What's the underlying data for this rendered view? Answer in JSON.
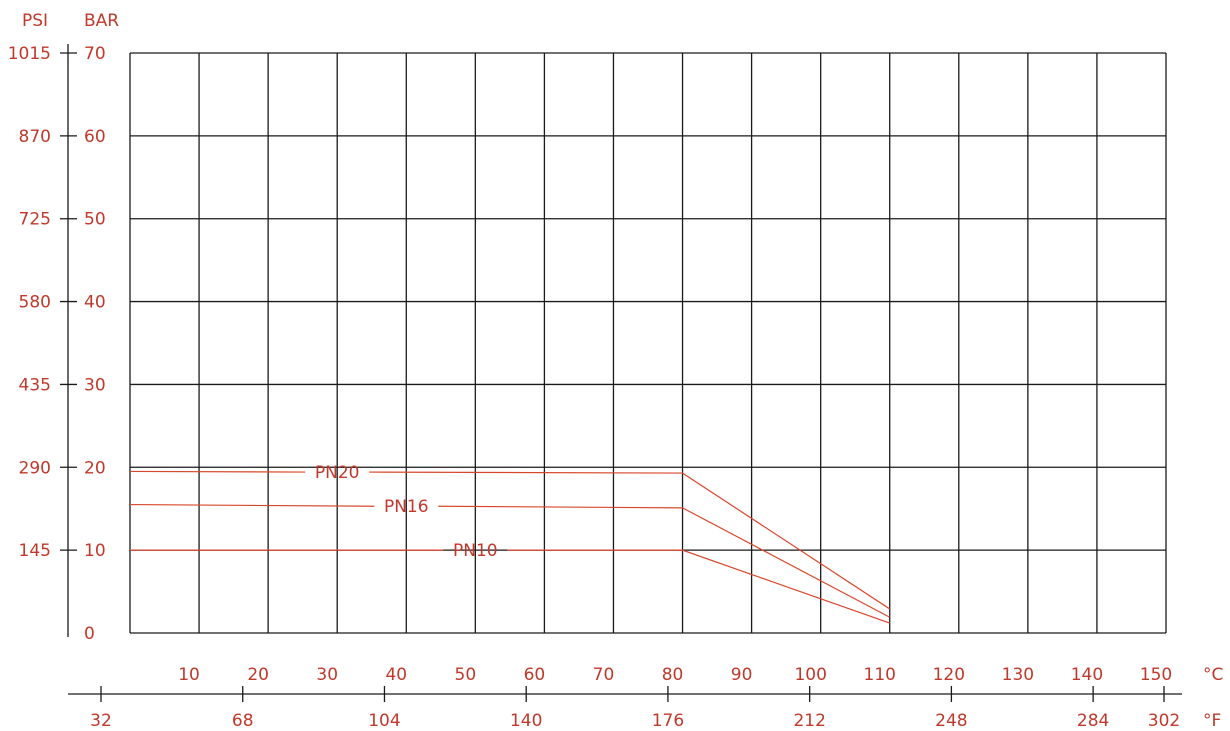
{
  "chart_data": {
    "type": "line",
    "title": "",
    "colors": {
      "text": "#c0392b",
      "series": "#d9472b",
      "grid": "#1a1a1a"
    },
    "y_axis_bar": {
      "unit": "BAR",
      "ticks": [
        "0",
        "10",
        "20",
        "30",
        "40",
        "50",
        "60",
        "70"
      ],
      "range": [
        0,
        70
      ]
    },
    "y_axis_psi": {
      "unit": "PSI",
      "ticks": [
        "145",
        "290",
        "435",
        "580",
        "725",
        "870",
        "1015"
      ],
      "values_bar": [
        10,
        20,
        30,
        40,
        50,
        60,
        70
      ]
    },
    "x_axis_c": {
      "unit": "°C",
      "ticks": [
        "10",
        "20",
        "30",
        "40",
        "50",
        "60",
        "70",
        "80",
        "90",
        "100",
        "110",
        "120",
        "130",
        "140",
        "150"
      ],
      "values": [
        10,
        20,
        30,
        40,
        50,
        60,
        70,
        80,
        90,
        100,
        110,
        120,
        130,
        140,
        150
      ]
    },
    "x_axis_f": {
      "unit": "°F",
      "ticks": [
        "32",
        "68",
        "104",
        "140",
        "176",
        "212",
        "248",
        "284",
        "302"
      ],
      "values_c": [
        0,
        20,
        40,
        60,
        80,
        100,
        120,
        140,
        150
      ]
    },
    "grid": true,
    "series": [
      {
        "name": "PN20",
        "points": [
          [
            0,
            19.5
          ],
          [
            80,
            19.3
          ],
          [
            110,
            2.9
          ]
        ],
        "label_at": 30
      },
      {
        "name": "PN16",
        "points": [
          [
            0,
            15.5
          ],
          [
            80,
            15.1
          ],
          [
            110,
            1.9
          ]
        ],
        "label_at": 40
      },
      {
        "name": "PN10",
        "points": [
          [
            0,
            10
          ],
          [
            80,
            10
          ],
          [
            110,
            1.2
          ]
        ],
        "label_at": 50
      }
    ]
  }
}
